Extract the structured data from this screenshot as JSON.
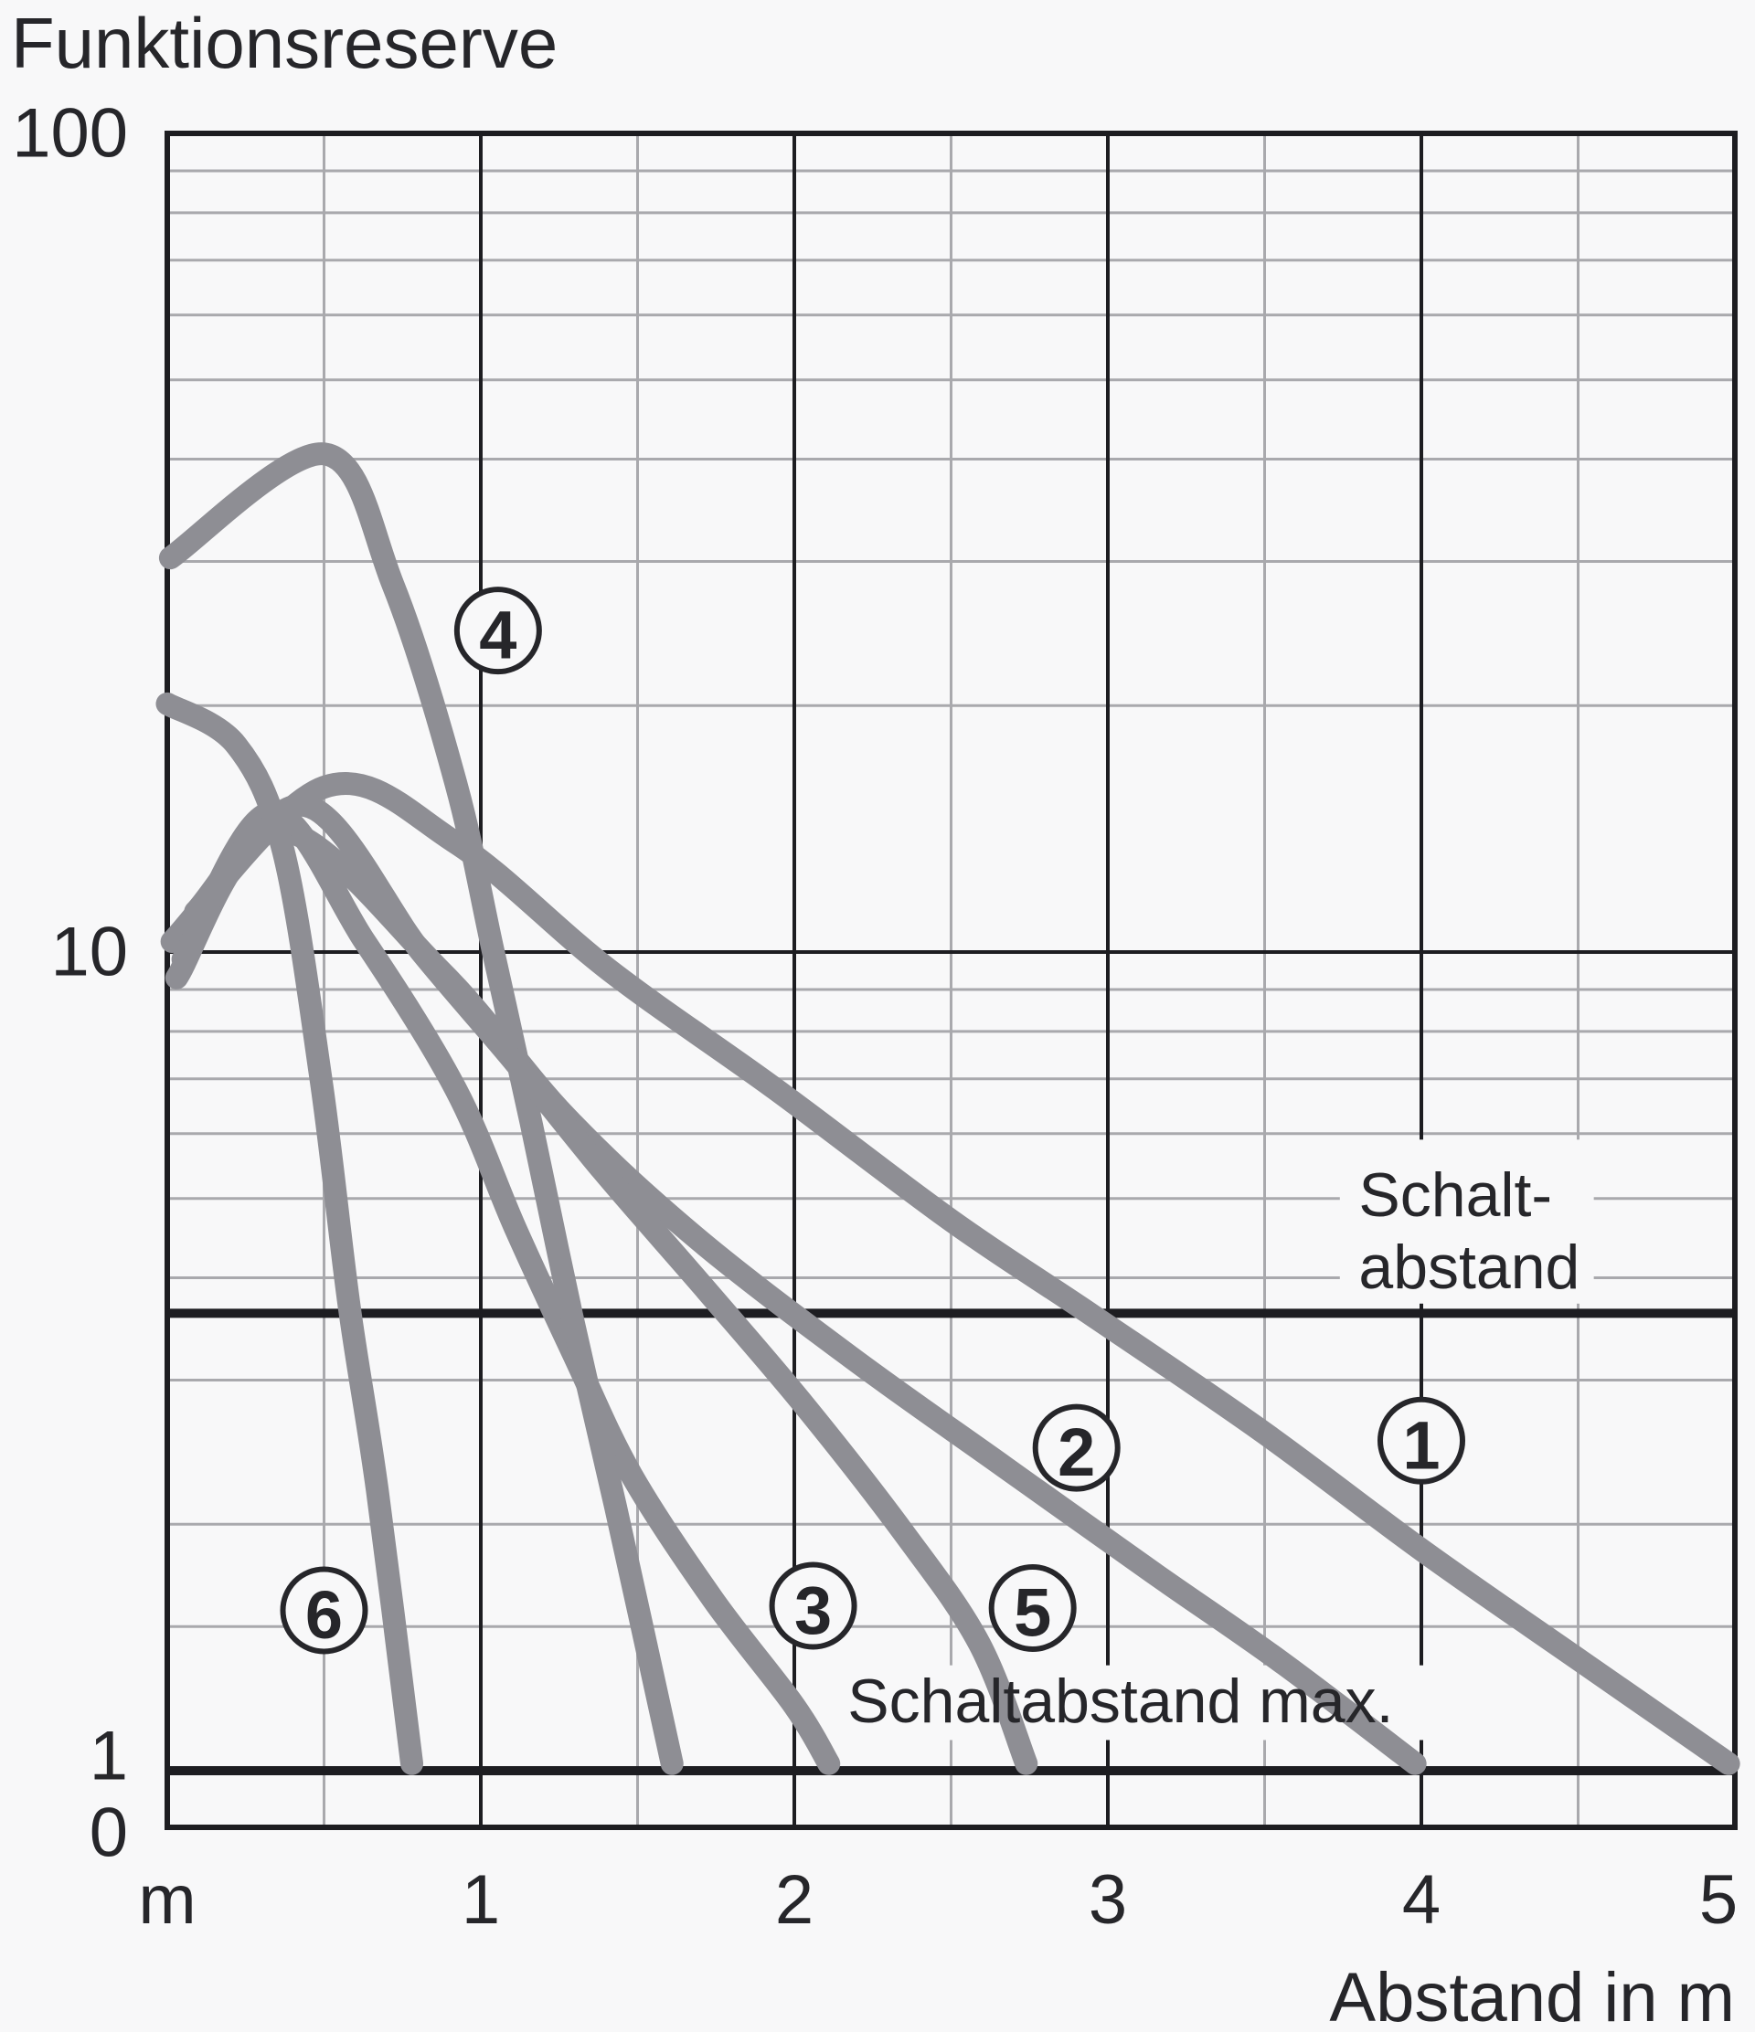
{
  "title": "Funktionsreserve",
  "colors": {
    "background": "#f8f8f9",
    "curve": "#8e8e94",
    "grid_minor": "#a9a9ad",
    "grid_major": "#1d1d21",
    "text": "#26262a"
  },
  "chart_data": {
    "type": "line",
    "title": "Funktionsreserve",
    "xlabel": "Abstand in m",
    "ylabel": "Funktionsreserve",
    "x_range": [
      0,
      5
    ],
    "y_scale": "log",
    "y_range": [
      1,
      100
    ],
    "y_axis_zero_label": "0",
    "grid": "on",
    "x_ticks": [
      {
        "x": 0,
        "label": "m"
      },
      {
        "x": 1,
        "label": "1"
      },
      {
        "x": 2,
        "label": "2"
      },
      {
        "x": 3,
        "label": "3"
      },
      {
        "x": 4,
        "label": "4"
      },
      {
        "x": 5,
        "label": "5"
      }
    ],
    "y_ticks": [
      {
        "v": 100,
        "label": "100"
      },
      {
        "v": 10,
        "label": "10"
      },
      {
        "v": 1,
        "label": "1"
      }
    ],
    "grid_h_minor_values": [
      90,
      80,
      70,
      60,
      50,
      40,
      30,
      20,
      9,
      8,
      7,
      6,
      5,
      4,
      3,
      2,
      1.5
    ],
    "grid_h_major_values": [
      10
    ],
    "grid_v_minor_values": [
      0.5,
      1.5,
      2.5,
      3.5,
      4.5
    ],
    "grid_v_major_values": [
      1,
      2,
      3,
      4
    ],
    "reference_lines": [
      {
        "name": "schaltabstand",
        "v": 3.62,
        "label_lines": [
          "Schalt-",
          "abstand"
        ],
        "label_x": 3.8,
        "label_line_v": [
          5.05,
          4.12
        ],
        "mask": {
          "x1": 3.74,
          "x2": 4.55,
          "v1": 5.9,
          "v2": 3.72
        }
      },
      {
        "name": "schaltabstand-max",
        "v": 1.0,
        "label_lines": [
          "Schaltabstand max."
        ],
        "label_x": 2.17,
        "label_line_v": [
          1.215
        ],
        "mask": {
          "x1": 2.12,
          "x2": 4.14,
          "v1": 1.345,
          "v2": 1.09
        }
      }
    ],
    "series": [
      {
        "name": "1",
        "points": [
          [
            0.015,
            10.3
          ],
          [
            0.5,
            15.9
          ],
          [
            0.92,
            13.6
          ],
          [
            1.41,
            9.5
          ],
          [
            1.94,
            6.8
          ],
          [
            2.5,
            4.7
          ],
          [
            2.95,
            3.6
          ],
          [
            3.49,
            2.6
          ],
          [
            4.01,
            1.85
          ],
          [
            4.51,
            1.36
          ],
          [
            4.98,
            1.02
          ]
        ]
      },
      {
        "name": "2",
        "points": [
          [
            0.03,
            9.3
          ],
          [
            0.35,
            14.1
          ],
          [
            0.87,
            9.5
          ],
          [
            1.27,
            6.3
          ],
          [
            1.68,
            4.5
          ],
          [
            2.18,
            3.2
          ],
          [
            2.67,
            2.35
          ],
          [
            3.14,
            1.75
          ],
          [
            3.55,
            1.36
          ],
          [
            3.98,
            1.02
          ]
        ]
      },
      {
        "name": "3",
        "points": [
          [
            0.05,
            9.8
          ],
          [
            0.33,
            14.8
          ],
          [
            0.63,
            10.3
          ],
          [
            0.92,
            6.8
          ],
          [
            1.11,
            4.6
          ],
          [
            1.3,
            3.2
          ],
          [
            1.48,
            2.3
          ],
          [
            1.74,
            1.62
          ],
          [
            2.0,
            1.2
          ],
          [
            2.11,
            1.02
          ]
        ]
      },
      {
        "name": "4",
        "points": [
          [
            0.01,
            30.3
          ],
          [
            0.5,
            40.6
          ],
          [
            0.72,
            28.1
          ],
          [
            0.92,
            16.1
          ],
          [
            1.04,
            10.0
          ],
          [
            1.16,
            6.2
          ],
          [
            1.29,
            3.6
          ],
          [
            1.43,
            2.1
          ],
          [
            1.61,
            1.02
          ]
        ]
      },
      {
        "name": "5",
        "points": [
          [
            0.09,
            11.2
          ],
          [
            0.44,
            15.1
          ],
          [
            0.81,
            10.0
          ],
          [
            1.1,
            7.4
          ],
          [
            1.39,
            5.4
          ],
          [
            1.71,
            3.9
          ],
          [
            2.03,
            2.8
          ],
          [
            2.35,
            1.95
          ],
          [
            2.59,
            1.43
          ],
          [
            2.74,
            1.02
          ]
        ]
      },
      {
        "name": "6",
        "points": [
          [
            0.0,
            20.1
          ],
          [
            0.22,
            17.9
          ],
          [
            0.37,
            13.3
          ],
          [
            0.49,
            7.0
          ],
          [
            0.58,
            3.7
          ],
          [
            0.67,
            2.2
          ],
          [
            0.78,
            1.02
          ]
        ]
      }
    ],
    "curve_badges": [
      {
        "num": "1",
        "x": 4.0,
        "v": 2.53
      },
      {
        "num": "2",
        "x": 2.9,
        "v": 2.48
      },
      {
        "num": "3",
        "x": 2.06,
        "v": 1.59
      },
      {
        "num": "4",
        "x": 1.055,
        "v": 24.7
      },
      {
        "num": "5",
        "x": 2.76,
        "v": 1.58
      },
      {
        "num": "6",
        "x": 0.5,
        "v": 1.57
      }
    ]
  }
}
